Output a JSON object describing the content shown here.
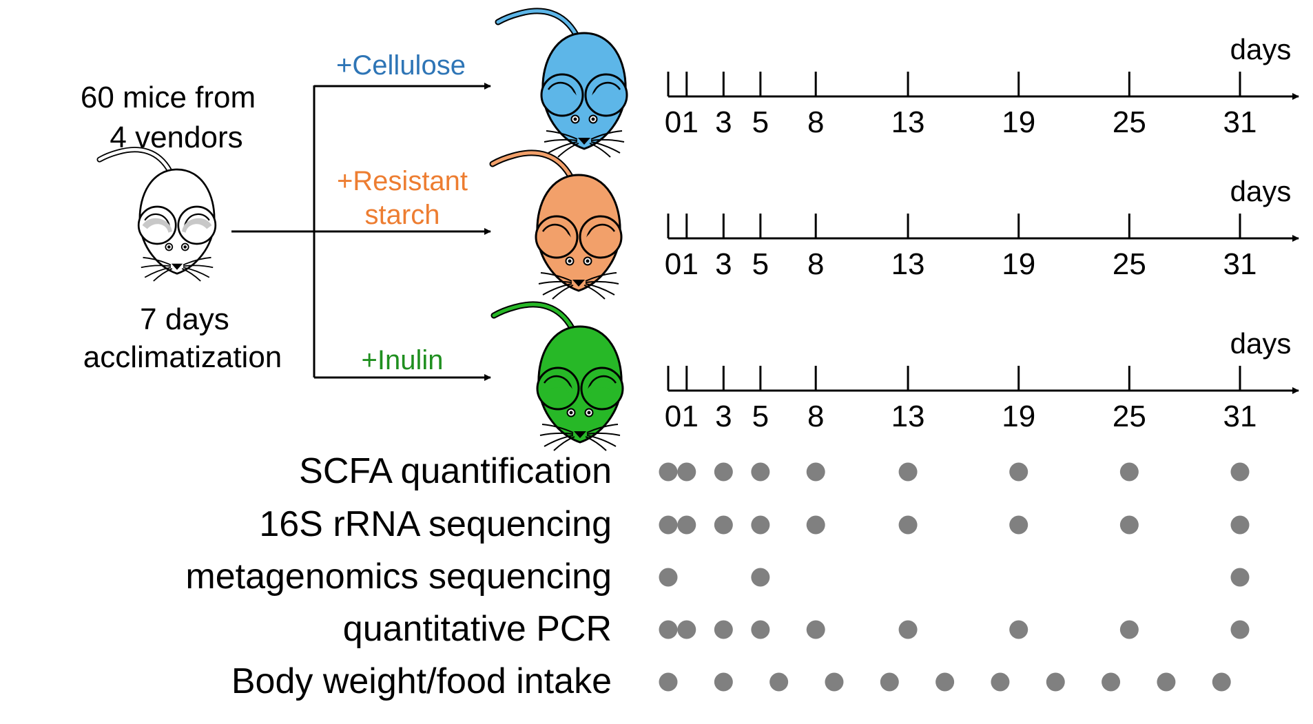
{
  "source": {
    "line1": "60 mice from",
    "line2": "4 vendors",
    "acclim1": "7 days",
    "acclim2": "acclimatization"
  },
  "groups": [
    {
      "lines": [
        "+Cellulose"
      ],
      "color": "#2e75b6",
      "fill": "#5db6e8"
    },
    {
      "lines": [
        "+Resistant",
        "starch"
      ],
      "color": "#ed7d31",
      "fill": "#f2a06a"
    },
    {
      "lines": [
        "+Inulin"
      ],
      "color": "#1f8f1f",
      "fill": "#27b827"
    }
  ],
  "timeline": {
    "unit": "days",
    "ticks": [
      0,
      1,
      3,
      5,
      8,
      13,
      19,
      25,
      31
    ],
    "tick_labels": [
      "0",
      "1",
      "3",
      "5",
      "8",
      "13",
      "19",
      "25",
      "31"
    ]
  },
  "measurements": [
    {
      "label": "SCFA quantification",
      "days": [
        0,
        1,
        3,
        5,
        8,
        13,
        19,
        25,
        31
      ]
    },
    {
      "label": "16S rRNA sequencing",
      "days": [
        0,
        1,
        3,
        5,
        8,
        13,
        19,
        25,
        31
      ]
    },
    {
      "label": "metagenomics sequencing",
      "days": [
        0,
        5,
        31
      ]
    },
    {
      "label": "quantitative PCR",
      "days": [
        0,
        1,
        3,
        5,
        8,
        13,
        19,
        25,
        31
      ]
    },
    {
      "label": "Body weight/food intake",
      "days": [
        0,
        3,
        6,
        9,
        12,
        15,
        18,
        21,
        24,
        27,
        30
      ]
    }
  ],
  "colors": {
    "dot": "#808080",
    "line": "#000000",
    "mouse_source_fill": "#ffffff",
    "mouse_ear_inner": "#c8c8c8"
  }
}
